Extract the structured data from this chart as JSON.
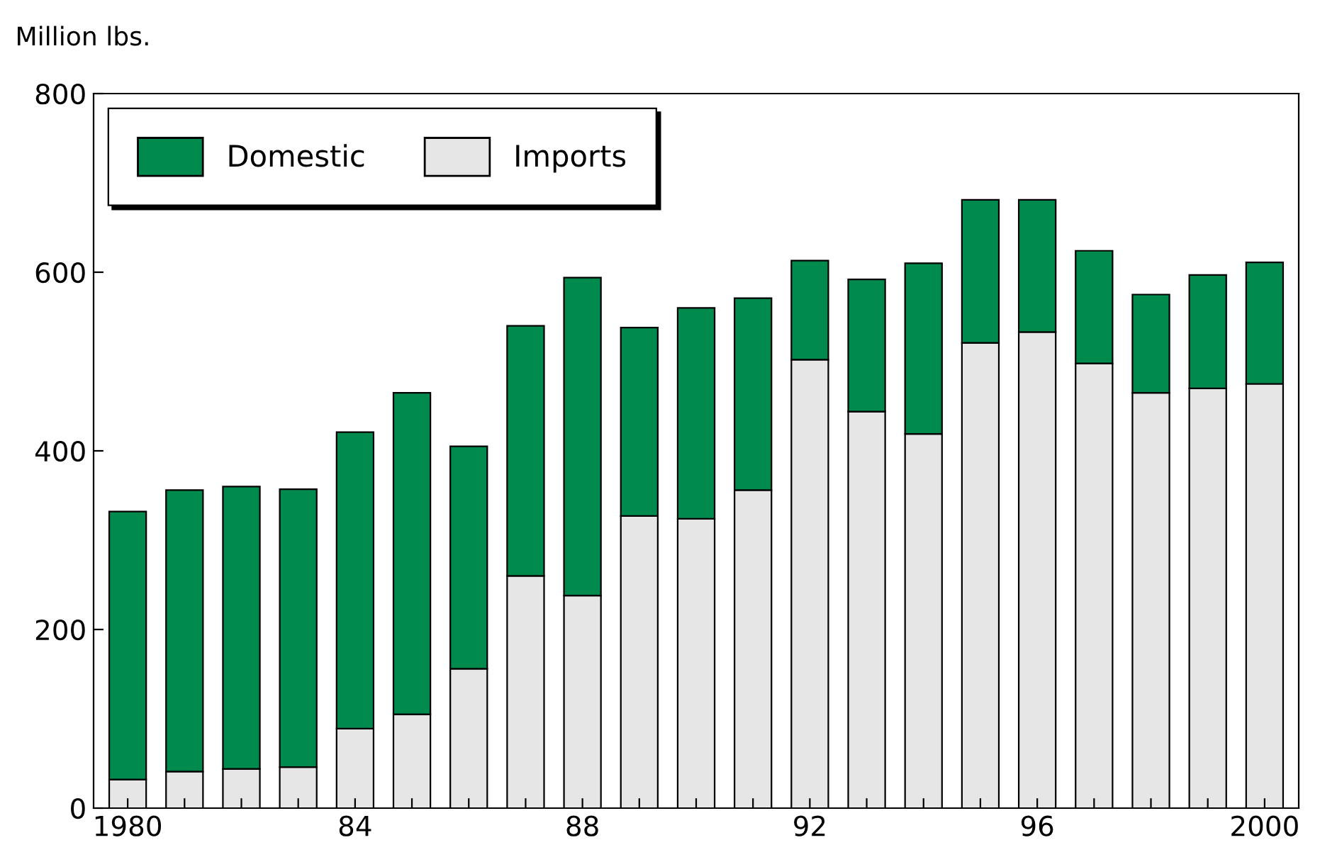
{
  "chart_data": {
    "type": "bar",
    "stacked": true,
    "ylabel": "Million lbs.",
    "categories": [
      "1980",
      null,
      null,
      null,
      "84",
      null,
      null,
      null,
      "88",
      null,
      null,
      null,
      "92",
      null,
      null,
      null,
      "96",
      null,
      null,
      null,
      "2000"
    ],
    "series": [
      {
        "name": "Imports",
        "color": "#e6e6e6",
        "values": [
          32,
          41,
          44,
          46,
          89,
          105,
          156,
          260,
          238,
          327,
          324,
          356,
          502,
          444,
          419,
          521,
          533,
          498,
          465,
          470,
          475
        ]
      },
      {
        "name": "Domestic",
        "color": "#008a4e",
        "values": [
          300,
          315,
          316,
          311,
          332,
          360,
          249,
          280,
          356,
          211,
          236,
          215,
          111,
          148,
          191,
          160,
          148,
          126,
          110,
          127,
          136
        ]
      }
    ],
    "ylim": [
      0,
      800
    ],
    "yticks": [
      0,
      200,
      400,
      600,
      800
    ],
    "grid": false,
    "legend": "top left"
  }
}
